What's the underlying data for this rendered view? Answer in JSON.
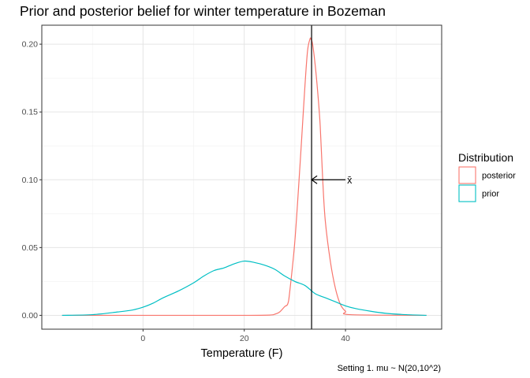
{
  "chart_data": {
    "type": "line",
    "title": "Prior and posterior belief for winter temperature in Bozeman",
    "xlabel": "Temperature (F)",
    "ylabel": "",
    "caption": "Setting 1. mu ~ N(20,10^2)",
    "xlim": [
      -20,
      59
    ],
    "ylim": [
      -0.0102,
      0.214
    ],
    "x_ticks": [
      0,
      20,
      40
    ],
    "x_tick_labels": [
      "0",
      "20",
      "40"
    ],
    "y_ticks": [
      0.0,
      0.05,
      0.1,
      0.15,
      0.2
    ],
    "y_tick_labels": [
      "0.00",
      "0.05",
      "0.10",
      "0.15",
      "0.20"
    ],
    "grid": true,
    "legend": {
      "title": "Distribution",
      "position": "right",
      "entries": [
        "posterior",
        "prior"
      ]
    },
    "series": [
      {
        "name": "posterior",
        "color": "#F8766D",
        "x": [
          -16,
          10,
          20,
          25,
          26,
          27,
          28,
          28.6,
          29,
          30,
          31,
          31.5,
          32,
          32.5,
          33,
          33.2,
          33.5,
          34,
          34.5,
          35,
          35.5,
          36,
          37,
          38,
          39,
          40,
          41,
          56
        ],
        "y": [
          0,
          0,
          0,
          0.0002,
          0.0008,
          0.0025,
          0.0065,
          0.0085,
          0.018,
          0.055,
          0.11,
          0.14,
          0.17,
          0.195,
          0.204,
          0.2035,
          0.2,
          0.185,
          0.165,
          0.14,
          0.1,
          0.07,
          0.04,
          0.02,
          0.008,
          0.003,
          0.0005,
          0
        ]
      },
      {
        "name": "prior",
        "color": "#00BFC4",
        "x": [
          -16,
          -10,
          -5,
          -2,
          0,
          2,
          4,
          7,
          10,
          12,
          14,
          16,
          18,
          20,
          22,
          24,
          26,
          28,
          30,
          32,
          34,
          36,
          38,
          40,
          42,
          45,
          48,
          52,
          56
        ],
        "y": [
          0,
          0.0005,
          0.0025,
          0.004,
          0.006,
          0.009,
          0.013,
          0.018,
          0.024,
          0.029,
          0.033,
          0.035,
          0.038,
          0.04,
          0.039,
          0.037,
          0.034,
          0.029,
          0.025,
          0.022,
          0.016,
          0.013,
          0.01,
          0.007,
          0.005,
          0.003,
          0.0015,
          0.0005,
          0
        ]
      }
    ],
    "annotations": [
      {
        "type": "vline",
        "x": 33.3,
        "color": "#000000"
      },
      {
        "type": "arrow",
        "from": [
          40,
          0.1
        ],
        "to": [
          33.3,
          0.1
        ],
        "label": "x̄"
      }
    ]
  }
}
